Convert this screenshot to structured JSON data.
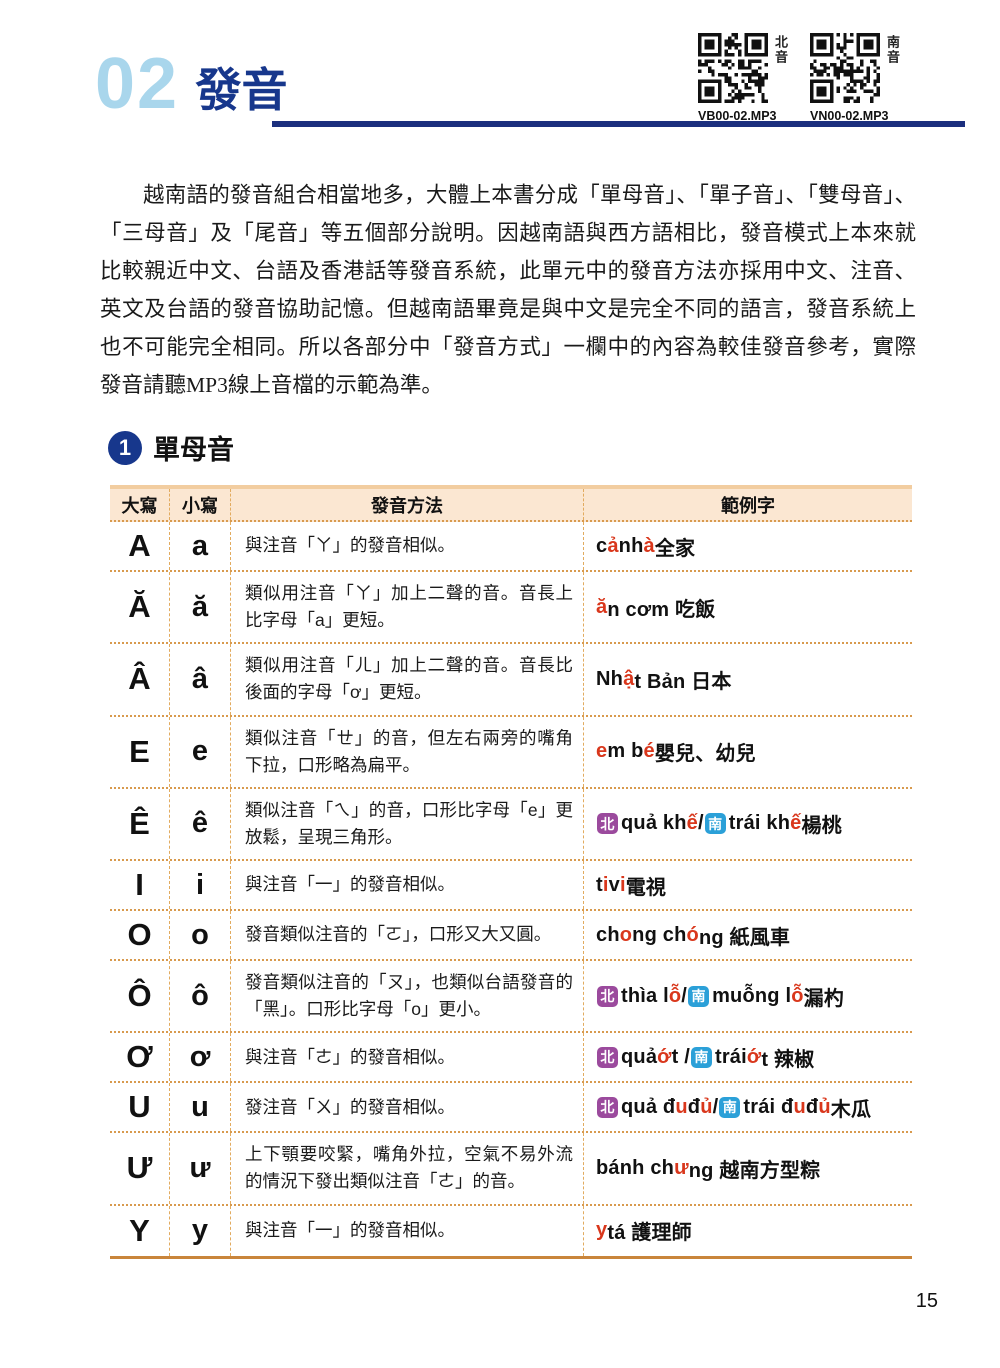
{
  "header": {
    "chapter_number": "02",
    "chapter_title": "發音",
    "qr_codes": [
      {
        "side_label": "北音",
        "file": "VB00-02.MP3"
      },
      {
        "side_label": "南音",
        "file": "VN00-02.MP3"
      }
    ]
  },
  "intro": {
    "text": "越南語的發音組合相當地多，大體上本書分成「單母音」、「單子音」、「雙母音」、「三母音」及「尾音」等五個部分說明。因越南語與西方語相比，發音模式上本來就比較親近中文、台語及香港話等發音系統，此單元中的發音方法亦採用中文、注音、英文及台語的發音協助記憶。但越南語畢竟是與中文是完全不同的語言，發音系統上也不可能完全相同。所以各部分中「發音方式」一欄中的內容為較佳發音參考，實際發音請聽MP3線上音檔的示範為準。"
  },
  "section": {
    "number": "1",
    "title": "單母音"
  },
  "table": {
    "headers": [
      "大寫",
      "小寫",
      "發音方法",
      "範例字"
    ],
    "badge_legend": {
      "bn": "北",
      "bs": "南"
    },
    "rows": [
      {
        "upper": "A",
        "lower": "a",
        "method": "與注音「ㄚ」的發音相似。",
        "example": [
          {
            "t": "c"
          },
          {
            "t": "ả",
            "s": "r"
          },
          {
            "t": " nh"
          },
          {
            "t": "à",
            "s": "r"
          },
          {
            "t": " 全家"
          }
        ]
      },
      {
        "upper": "Ă",
        "lower": "ă",
        "method": "類似用注音「ㄚ」加上二聲的音。音長上比字母「a」更短。",
        "example": [
          {
            "t": "ă",
            "s": "r"
          },
          {
            "t": "n cơm 吃飯"
          }
        ]
      },
      {
        "upper": "Â",
        "lower": "â",
        "method": "類似用注音「ㄦ」加上二聲的音。音長比後面的字母「ơ」更短。",
        "example": [
          {
            "t": "Nh"
          },
          {
            "t": "ậ",
            "s": "r"
          },
          {
            "t": "t Bản 日本"
          }
        ]
      },
      {
        "upper": "E",
        "lower": "e",
        "method": "類似注音「ㄝ」的音，但左右兩旁的嘴角下拉，口形略為扁平。",
        "example": [
          {
            "t": "e",
            "s": "r"
          },
          {
            "t": "m b"
          },
          {
            "t": "é",
            "s": "r"
          },
          {
            "t": " 嬰兒、幼兒"
          }
        ]
      },
      {
        "upper": "Ê",
        "lower": "ê",
        "method": "類似注音「ㄟ」的音，口形比字母「e」更放鬆，呈現三角形。",
        "example": [
          {
            "t": "北",
            "s": "bn"
          },
          {
            "t": "quả kh"
          },
          {
            "t": "ế",
            "s": "r"
          },
          {
            "t": " / "
          },
          {
            "t": "南",
            "s": "bs"
          },
          {
            "t": "trái kh"
          },
          {
            "t": "ế",
            "s": "r"
          },
          {
            "t": " 楊桃"
          }
        ]
      },
      {
        "upper": "I",
        "lower": "i",
        "method": "與注音「一」的發音相似。",
        "example": [
          {
            "t": "t"
          },
          {
            "t": "i",
            "s": "r"
          },
          {
            "t": "v"
          },
          {
            "t": "i",
            "s": "r"
          },
          {
            "t": " 電視"
          }
        ]
      },
      {
        "upper": "O",
        "lower": "o",
        "method": "發音類似注音的「ㄛ」，口形又大又圓。",
        "example": [
          {
            "t": "ch"
          },
          {
            "t": "o",
            "s": "r"
          },
          {
            "t": "ng ch"
          },
          {
            "t": "ó",
            "s": "r"
          },
          {
            "t": "ng 紙風車"
          }
        ]
      },
      {
        "upper": "Ô",
        "lower": "ô",
        "method": "發音類似注音的「ㄡ」，也類似台語發音的「黑」。口形比字母「o」更小。",
        "example": [
          {
            "t": "北",
            "s": "bn"
          },
          {
            "t": "thìa l"
          },
          {
            "t": "ỗ",
            "s": "r"
          },
          {
            "t": " / "
          },
          {
            "t": "南",
            "s": "bs"
          },
          {
            "t": "muỗng l"
          },
          {
            "t": "ỗ",
            "s": "r"
          },
          {
            "t": " 漏杓"
          }
        ]
      },
      {
        "upper": "Ơ",
        "lower": "ơ",
        "method": "與注音「ㄜ」的發音相似。",
        "example": [
          {
            "t": "北",
            "s": "bn"
          },
          {
            "t": "quả "
          },
          {
            "t": "ớ",
            "s": "r"
          },
          {
            "t": "t / "
          },
          {
            "t": "南",
            "s": "bs"
          },
          {
            "t": "trái "
          },
          {
            "t": "ớ",
            "s": "r"
          },
          {
            "t": "t 辣椒"
          }
        ]
      },
      {
        "upper": "U",
        "lower": "u",
        "method": "發注音「ㄨ」的發音相似。",
        "example": [
          {
            "t": "北",
            "s": "bn"
          },
          {
            "t": "quả đ"
          },
          {
            "t": "u",
            "s": "r"
          },
          {
            "t": " đ"
          },
          {
            "t": "ủ",
            "s": "r"
          },
          {
            "t": " / "
          },
          {
            "t": "南",
            "s": "bs"
          },
          {
            "t": "trái đ"
          },
          {
            "t": "u",
            "s": "r"
          },
          {
            "t": " đ"
          },
          {
            "t": "ủ",
            "s": "r"
          },
          {
            "t": " 木瓜"
          }
        ]
      },
      {
        "upper": "Ư",
        "lower": "ư",
        "method": "上下顎要咬緊，嘴角外拉，空氣不易外流的情況下發出類似注音「ㄜ」的音。",
        "example": [
          {
            "t": "bánh ch"
          },
          {
            "t": "ư",
            "s": "r"
          },
          {
            "t": "ng 越南方型粽"
          }
        ]
      },
      {
        "upper": "Y",
        "lower": "y",
        "method": "與注音「一」的發音相似。",
        "example": [
          {
            "t": "y",
            "s": "r"
          },
          {
            "t": " tá 護理師"
          }
        ]
      }
    ]
  },
  "page": {
    "number": "15"
  },
  "colors": {
    "chapter_number_blue": "#a9d6ec",
    "navy": "#17378c",
    "rule_navy": "#1b2f7e",
    "table_header_bg": "#fbe7d2",
    "table_border_orange": "#c9853b",
    "table_dotted": "#d89a4e",
    "highlight_red": "#d9371c",
    "badge_north_purple": "#9b4a9d",
    "badge_south_blue": "#2ba0d8"
  }
}
